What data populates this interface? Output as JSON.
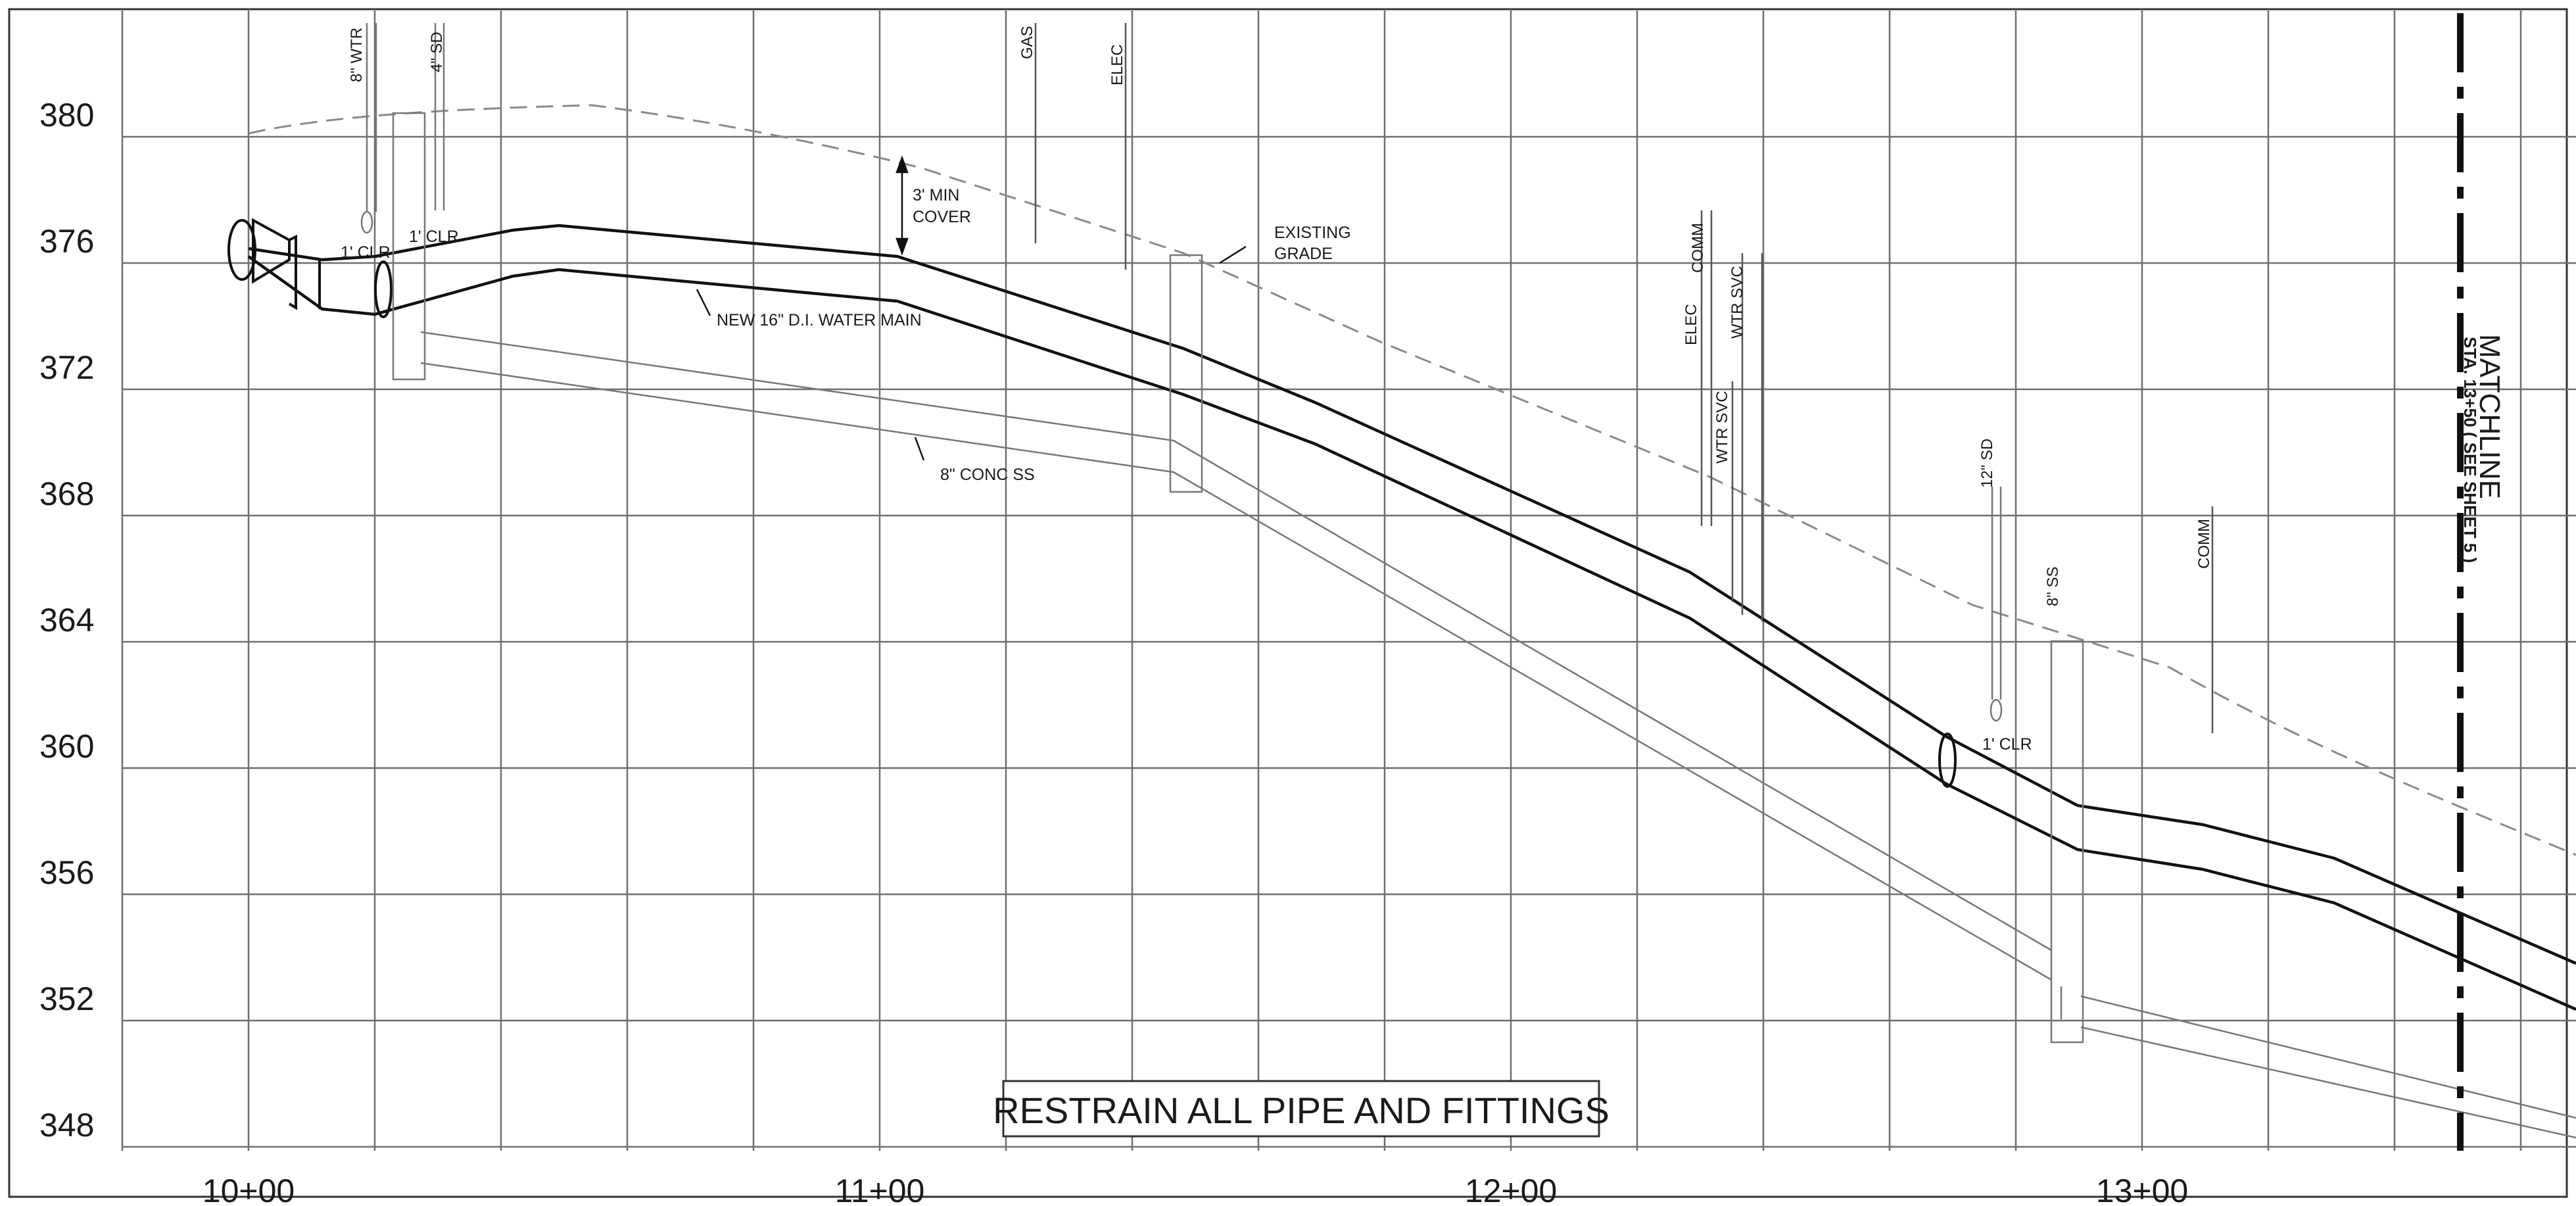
{
  "elevation_labels": [
    "380",
    "376",
    "372",
    "368",
    "364",
    "360",
    "356",
    "352",
    "348"
  ],
  "station_labels": [
    "10+00",
    "11+00",
    "12+00",
    "13+00"
  ],
  "callouts": {
    "min_cover_line1": "3' MIN",
    "min_cover_line2": "COVER",
    "existing_grade_line1": "EXISTING",
    "existing_grade_line2": "GRADE",
    "water_main": "NEW 16\" D.I. WATER MAIN",
    "sewer": "8\" CONC SS",
    "clr_1": "1' CLR",
    "clr_2": "1' CLR",
    "clr_3": "1' CLR"
  },
  "utility_crossings": {
    "wtr8": "8\" WTR",
    "sd4": "4\" SD",
    "gas": "GAS",
    "elec1": "ELEC",
    "elec2": "ELEC",
    "comm1": "COMM",
    "wtrsvc1": "WTR SVC",
    "wtrsvc2": "WTR SVC",
    "sd12": "12\" SD",
    "ss8": "8\" SS",
    "comm2": "COMM"
  },
  "matchline": {
    "title": "MATCHLINE",
    "subtitle": "STA. 13+50  ( SEE SHEET 5 )"
  },
  "note_box": "RESTRAIN ALL PIPE AND FITTINGS",
  "colors": {
    "grid": "#6f6f6f",
    "pipe": "#111111",
    "grade": "#8a8a8a",
    "sewer": "#777777"
  }
}
